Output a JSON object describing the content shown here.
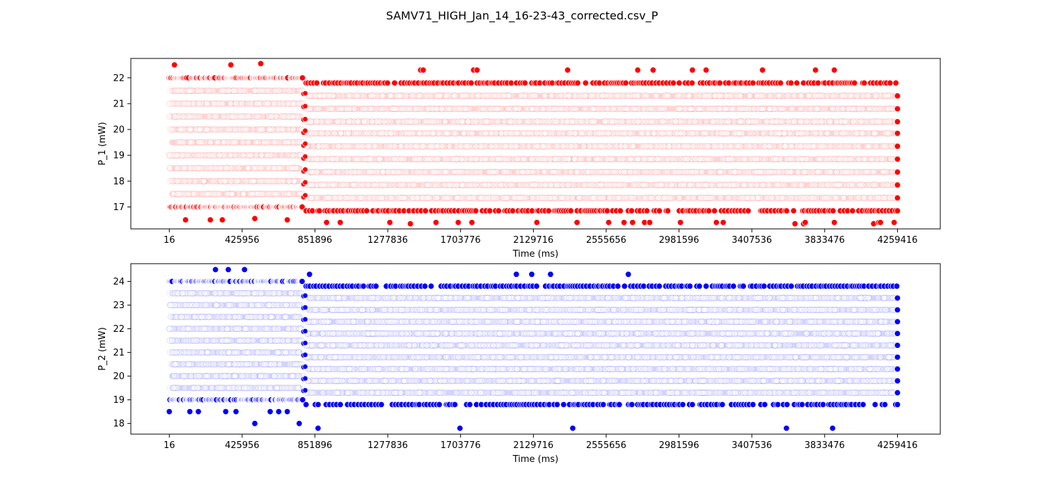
{
  "figure": {
    "suptitle": "SAMV71_HIGH_Jan_14_16-23-43_corrected.csv_P"
  },
  "chart_data": [
    {
      "type": "scatter",
      "xlabel": "Time (ms)",
      "ylabel": "P_1 (mW)",
      "xlim": [
        -225000,
        4510000
      ],
      "ylim": [
        16.15,
        22.75
      ],
      "xticks": [
        16,
        425956,
        851896,
        1277836,
        1703776,
        2129716,
        2555656,
        2981596,
        3407536,
        3833476,
        4259416
      ],
      "yticks": [
        17,
        18,
        19,
        20,
        21,
        22
      ],
      "color": "#ff0000",
      "grid": false,
      "phase1": {
        "x_range": [
          16,
          780000
        ],
        "dense_levels": [
          17.5,
          18.0,
          18.5,
          19.0,
          19.5,
          20.0,
          20.5,
          21.0,
          21.5
        ],
        "sparse_levels": [
          17.0,
          22.0
        ],
        "outlier_points": [
          [
            30000,
            22.5
          ],
          [
            360000,
            22.5
          ],
          [
            535000,
            22.55
          ],
          [
            95000,
            16.5
          ],
          [
            240000,
            16.5
          ],
          [
            310000,
            16.5
          ],
          [
            500000,
            16.55
          ],
          [
            690000,
            16.5
          ]
        ]
      },
      "phase2": {
        "x_range": [
          800000,
          4259416
        ],
        "dense_levels": [
          17.35,
          17.85,
          18.35,
          18.85,
          19.35,
          19.85,
          20.3,
          20.8,
          21.3
        ],
        "sparse_levels": [
          16.85,
          21.8
        ],
        "outlier_points": [
          [
            1470000,
            22.3
          ],
          [
            1485000,
            22.3
          ],
          [
            1780000,
            22.3
          ],
          [
            1800000,
            22.3
          ],
          [
            2330000,
            22.3
          ],
          [
            2740000,
            22.3
          ],
          [
            2830000,
            22.3
          ],
          [
            3060000,
            22.3
          ],
          [
            3140000,
            22.3
          ],
          [
            3470000,
            22.3
          ],
          [
            3780000,
            22.3
          ],
          [
            3890000,
            22.3
          ],
          [
            920000,
            16.4
          ],
          [
            1000000,
            16.4
          ],
          [
            1290000,
            16.4
          ],
          [
            1410000,
            16.35
          ],
          [
            1560000,
            16.4
          ],
          [
            1690000,
            16.4
          ],
          [
            1770000,
            16.4
          ],
          [
            2150000,
            16.4
          ],
          [
            2385000,
            16.4
          ],
          [
            2570000,
            16.4
          ],
          [
            2660000,
            16.4
          ],
          [
            2710000,
            16.4
          ],
          [
            2780000,
            16.4
          ],
          [
            2810000,
            16.4
          ],
          [
            2990000,
            16.4
          ],
          [
            3200000,
            16.4
          ],
          [
            3240000,
            16.4
          ],
          [
            3660000,
            16.35
          ],
          [
            3710000,
            16.35
          ],
          [
            3720000,
            16.4
          ],
          [
            3890000,
            16.4
          ],
          [
            4120000,
            16.35
          ],
          [
            4150000,
            16.4
          ],
          [
            4160000,
            16.4
          ],
          [
            4240000,
            16.4
          ]
        ],
        "final_column": [
          16.85,
          17.35,
          17.85,
          18.35,
          18.85,
          19.35,
          19.85,
          20.3,
          20.8,
          21.3
        ]
      }
    },
    {
      "type": "scatter",
      "xlabel": "Time (ms)",
      "ylabel": "P_2 (mW)",
      "xlim": [
        -225000,
        4510000
      ],
      "ylim": [
        17.55,
        24.75
      ],
      "xticks": [
        16,
        425956,
        851896,
        1277836,
        1703776,
        2129716,
        2555656,
        2981596,
        3407536,
        3833476,
        4259416
      ],
      "yticks": [
        18,
        19,
        20,
        21,
        22,
        23,
        24
      ],
      "color": "#0000ff",
      "grid": false,
      "phase1": {
        "x_range": [
          16,
          780000
        ],
        "dense_levels": [
          19.5,
          20.0,
          20.5,
          21.0,
          21.5,
          22.0,
          22.5,
          23.0,
          23.5
        ],
        "sparse_levels": [
          19.0,
          24.0
        ],
        "outlier_points": [
          [
            270000,
            24.5
          ],
          [
            345000,
            24.5
          ],
          [
            440000,
            24.5
          ],
          [
            16,
            18.5
          ],
          [
            120000,
            18.5
          ],
          [
            170000,
            18.5
          ],
          [
            330000,
            18.5
          ],
          [
            390000,
            18.5
          ],
          [
            500000,
            18.0
          ],
          [
            590000,
            18.5
          ],
          [
            640000,
            18.5
          ],
          [
            690000,
            18.5
          ],
          [
            760000,
            18.0
          ]
        ]
      },
      "phase2": {
        "x_range": [
          800000,
          4259416
        ],
        "dense_levels": [
          19.3,
          19.8,
          20.3,
          20.8,
          21.3,
          21.8,
          22.3,
          22.8,
          23.3
        ],
        "sparse_levels": [
          18.8,
          23.8
        ],
        "outlier_points": [
          [
            820000,
            24.3
          ],
          [
            2030000,
            24.3
          ],
          [
            2120000,
            24.3
          ],
          [
            2230000,
            24.3
          ],
          [
            2685000,
            24.3
          ],
          [
            870000,
            17.8
          ],
          [
            1700000,
            17.8
          ],
          [
            2360000,
            17.8
          ],
          [
            3610000,
            17.8
          ],
          [
            3880000,
            17.8
          ]
        ],
        "final_column": [
          18.8,
          19.3,
          19.8,
          20.3,
          20.8,
          21.3,
          21.8,
          22.3,
          22.8,
          23.3
        ]
      }
    }
  ]
}
